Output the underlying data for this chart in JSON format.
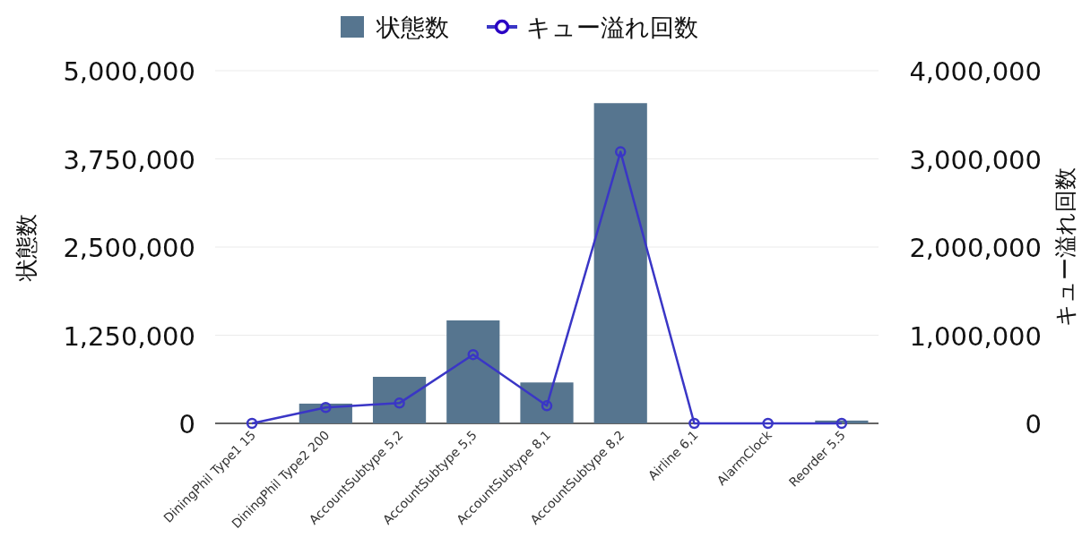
{
  "chart_data": {
    "type": "bar",
    "categories": [
      "DiningPhil Type1 15",
      "DiningPhil Type2 200",
      "AccountSubtype 5,2",
      "AccountSubtype 5,5",
      "AccountSubtype 8,1",
      "AccountSubtype 8,2",
      "Airline 6,1",
      "AlarmClock",
      "Reorder 5.5"
    ],
    "series": [
      {
        "name": "状態数",
        "color": "#56758f",
        "values": [
          0,
          280000,
          660000,
          1460000,
          580000,
          4540000,
          0,
          0,
          40000
        ]
      },
      {
        "name": "キュー溢れ回数",
        "type": "line",
        "axis": "y2",
        "color": "#3a36c6",
        "marker": "circle",
        "values": [
          0,
          180000,
          230000,
          780000,
          200000,
          3080000,
          0,
          0,
          0
        ]
      }
    ],
    "ylabel": "状態数",
    "y2label": "キュー溢れ回数",
    "ylim": [
      0,
      5000000
    ],
    "yticks": [
      0,
      {
        "value": 1250000,
        "label": "1,250,000"
      },
      {
        "value": 2500000,
        "label": "2,500,000"
      },
      {
        "value": 3750000,
        "label": "3,750,000"
      },
      {
        "value": 5000000,
        "label": "5,000,000"
      }
    ],
    "y2lim": [
      0,
      4000000
    ],
    "y2ticks": [
      0,
      {
        "value": 1000000,
        "label": "1,000,000"
      },
      {
        "value": 2000000,
        "label": "2,000,000"
      },
      {
        "value": 3000000,
        "label": "3,000,000"
      },
      {
        "value": 4000000,
        "label": "4,000,000"
      }
    ],
    "grid": "y",
    "legend": "top"
  }
}
